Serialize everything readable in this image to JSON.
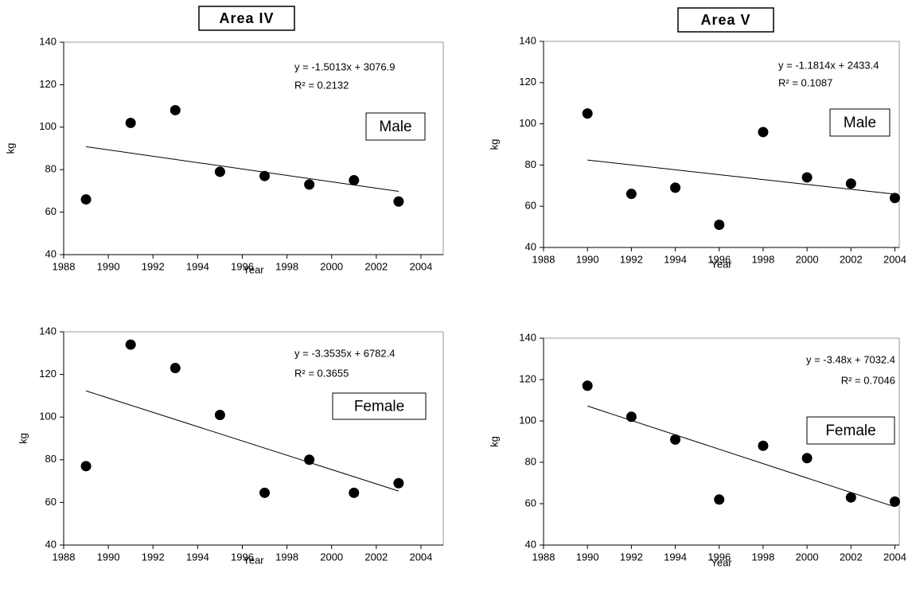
{
  "chart_data": [
    {
      "type": "scatter",
      "title": "Area IV",
      "annotation": "Male",
      "x_label": "Year",
      "y_label": "kg",
      "x": [
        1989,
        1991,
        1993,
        1995,
        1997,
        1999,
        2001,
        2003
      ],
      "values": [
        66,
        102,
        108,
        79,
        77,
        73,
        75,
        65
      ],
      "color": "#000000",
      "trendline": {
        "slope": -1.5013,
        "intercept": 3076.9,
        "label": "y = -1.5013x + 3076.9",
        "r2_label": "R² = 0.2132"
      },
      "xlim": [
        1988,
        2005
      ],
      "xticks": [
        1988,
        1990,
        1992,
        1994,
        1996,
        1998,
        2000,
        2002,
        2004
      ],
      "ylim": [
        40,
        140
      ],
      "yticks": [
        40,
        60,
        80,
        100,
        120,
        140
      ]
    },
    {
      "type": "scatter",
      "title": "Area V",
      "annotation": "Male",
      "x_label": "Year",
      "y_label": "kg",
      "x": [
        1990,
        1992,
        1994,
        1996,
        1998,
        2000,
        2002,
        2004
      ],
      "values": [
        105,
        66,
        69,
        51,
        96,
        74,
        71,
        64
      ],
      "color": "#000000",
      "trendline": {
        "slope": -1.1814,
        "intercept": 2433.4,
        "label": "y = -1.1814x + 2433.4",
        "r2_label": "R² = 0.1087"
      },
      "xlim": [
        1988,
        2004.2
      ],
      "xticks": [
        1988,
        1990,
        1992,
        1994,
        1996,
        1998,
        2000,
        2002,
        2004
      ],
      "ylim": [
        40,
        140
      ],
      "yticks": [
        40,
        60,
        80,
        100,
        120,
        140
      ]
    },
    {
      "type": "scatter",
      "annotation": "Female",
      "x_label": "Year",
      "y_label": "kg",
      "x": [
        1989,
        1991,
        1993,
        1995,
        1997,
        1999,
        2001,
        2003
      ],
      "values": [
        77,
        134,
        123,
        101,
        64.5,
        80,
        64.5,
        69
      ],
      "color": "#000000",
      "trendline": {
        "slope": -3.3535,
        "intercept": 6782.4,
        "label": "y = -3.3535x + 6782.4",
        "r2_label": "R² = 0.3655"
      },
      "xlim": [
        1988,
        2005
      ],
      "xticks": [
        1988,
        1990,
        1992,
        1994,
        1996,
        1998,
        2000,
        2002,
        2004
      ],
      "ylim": [
        40,
        140
      ],
      "yticks": [
        40,
        60,
        80,
        100,
        120,
        140
      ]
    },
    {
      "type": "scatter",
      "annotation": "Female",
      "x_label": "Year",
      "y_label": "kg",
      "x": [
        1990,
        1992,
        1994,
        1996,
        1998,
        2000,
        2002,
        2004
      ],
      "values": [
        117,
        102,
        91,
        62,
        88,
        82,
        63,
        61
      ],
      "color": "#000000",
      "trendline": {
        "slope": -3.48,
        "intercept": 7032.4,
        "label": "y = -3.48x + 7032.4",
        "r2_label": "R² = 0.7046"
      },
      "xlim": [
        1988,
        2004.2
      ],
      "xticks": [
        1988,
        1990,
        1992,
        1994,
        1996,
        1998,
        2000,
        2002,
        2004
      ],
      "ylim": [
        40,
        140
      ],
      "yticks": [
        40,
        60,
        80,
        100,
        120,
        140
      ]
    }
  ]
}
